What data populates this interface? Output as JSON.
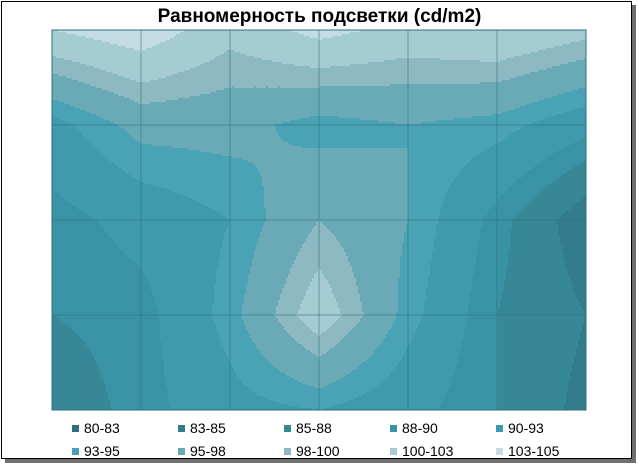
{
  "chart_data": {
    "type": "contour",
    "title": "Равномерность подсветки (cd/m2)",
    "xlabel": "",
    "ylabel": "",
    "grid": true,
    "legend_position": "bottom",
    "x": [
      1,
      2,
      3,
      4,
      5,
      6,
      7
    ],
    "y": [
      1,
      2,
      3,
      4,
      5
    ],
    "z": [
      [
        103,
        105,
        101,
        104,
        102,
        103,
        101
      ],
      [
        92,
        96,
        96,
        94,
        95,
        94,
        91
      ],
      [
        89,
        91,
        93,
        98,
        95,
        89,
        83
      ],
      [
        88,
        89,
        94,
        102,
        94,
        88,
        85
      ],
      [
        86,
        89,
        92,
        93,
        91,
        88,
        84
      ]
    ],
    "ranges": [
      {
        "label": "80-83",
        "min": 80,
        "max": 83,
        "color": "#2f6f7d"
      },
      {
        "label": "83-85",
        "min": 83,
        "max": 85,
        "color": "#337c8c"
      },
      {
        "label": "85-88",
        "min": 85,
        "max": 88,
        "color": "#368897"
      },
      {
        "label": "88-90",
        "min": 88,
        "max": 90,
        "color": "#3a93a4"
      },
      {
        "label": "90-93",
        "min": 90,
        "max": 93,
        "color": "#3e9aac"
      },
      {
        "label": "93-95",
        "min": 93,
        "max": 95,
        "color": "#4aa3b5"
      },
      {
        "label": "95-98",
        "min": 95,
        "max": 98,
        "color": "#6aaab6"
      },
      {
        "label": "98-100",
        "min": 98,
        "max": 100,
        "color": "#8cb9c2"
      },
      {
        "label": "100-103",
        "min": 100,
        "max": 103,
        "color": "#a6ccd3"
      },
      {
        "label": "103-105",
        "min": 103,
        "max": 105,
        "color": "#c3dde2"
      }
    ]
  }
}
